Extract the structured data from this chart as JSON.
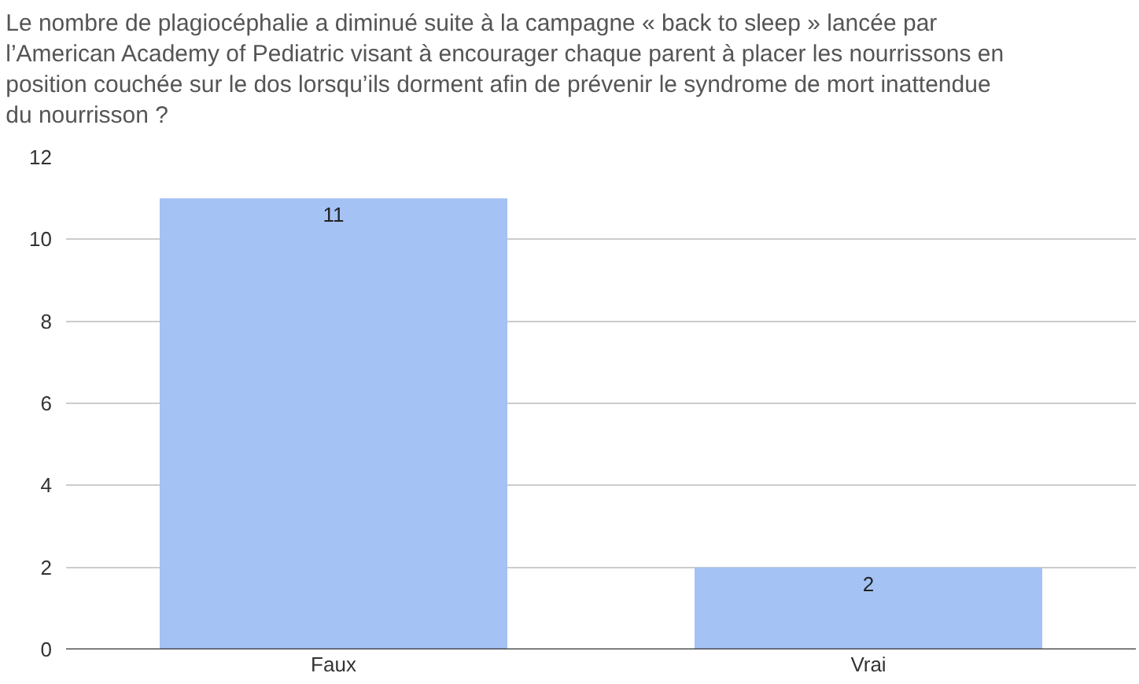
{
  "chart_data": {
    "type": "bar",
    "title": "Le nombre de plagiocéphalie a diminué suite à la campagne « back to sleep » lancée par l’American Academy of Pediatric visant à encourager chaque parent à placer les nourrissons en position couchée sur le dos lorsqu’ils dorment afin de prévenir le syndrome de mort inattendue du nourrisson ?",
    "categories": [
      "Faux",
      "Vrai"
    ],
    "values": [
      11,
      2
    ],
    "color": "#a4c2f4",
    "ylim": [
      0,
      12
    ],
    "yticks": [
      0,
      2,
      4,
      6,
      8,
      10,
      12
    ],
    "grid": "y",
    "data_labels": true,
    "legend": false
  }
}
